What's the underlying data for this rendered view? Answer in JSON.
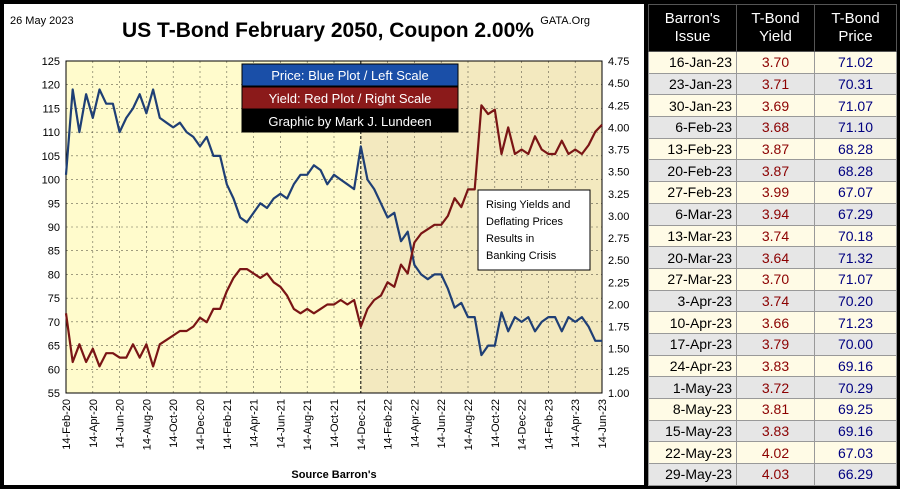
{
  "chart_data": {
    "type": "line",
    "date_label": "26 May 2023",
    "title": "US T-Bond February 2050, Coupon 2.00%",
    "source_tag": "GATA.Org",
    "legend": [
      {
        "text": "Price:  Blue Plot / Left Scale",
        "bg": "#1a4fa8",
        "fg": "#ffffff"
      },
      {
        "text": "Yield:  Red Plot / Right Scale",
        "bg": "#8b1a1a",
        "fg": "#ffffff"
      },
      {
        "text": "Graphic by Mark J. Lundeen",
        "bg": "#000000",
        "fg": "#ffffff"
      }
    ],
    "annotation": [
      "Rising Yields and",
      "Deflating Prices",
      "Results in",
      "Banking Crisis"
    ],
    "xlabel": "Source Barron's",
    "x_ticks": [
      "14-Feb-20",
      "14-Apr-20",
      "14-Jun-20",
      "14-Aug-20",
      "14-Oct-20",
      "14-Dec-20",
      "14-Feb-21",
      "14-Apr-21",
      "14-Jun-21",
      "14-Aug-21",
      "14-Oct-21",
      "14-Dec-21",
      "14-Feb-22",
      "14-Apr-22",
      "14-Jun-22",
      "14-Aug-22",
      "14-Oct-22",
      "14-Dec-22",
      "14-Feb-23",
      "14-Apr-23",
      "14-Jun-23"
    ],
    "ylim_left": [
      55,
      125
    ],
    "y_ticks_left": [
      "55",
      "60",
      "65",
      "70",
      "75",
      "80",
      "85",
      "90",
      "95",
      "100",
      "105",
      "110",
      "115",
      "120",
      "125"
    ],
    "ylim_right": [
      1.0,
      4.75
    ],
    "y_ticks_right": [
      "1.00",
      "1.25",
      "1.50",
      "1.75",
      "2.00",
      "2.25",
      "2.50",
      "2.75",
      "3.00",
      "3.25",
      "3.50",
      "3.75",
      "4.00",
      "4.25",
      "4.50",
      "4.75"
    ],
    "highlight_start_month": 22,
    "colors": {
      "price": "#1f3f75",
      "yield": "#7a1515",
      "plot_bg": "#fffbcc",
      "shade_bg": "#f3e9bf"
    },
    "series": [
      {
        "name": "Price",
        "axis": "left",
        "x": [
          0,
          0.5,
          1,
          1.5,
          2,
          2.5,
          3,
          3.5,
          4,
          4.5,
          5,
          5.5,
          6,
          6.5,
          7,
          7.5,
          8,
          8.5,
          9,
          9.5,
          10,
          10.5,
          11,
          11.5,
          12,
          12.5,
          13,
          13.5,
          14,
          14.5,
          15,
          15.5,
          16,
          16.5,
          17,
          17.5,
          18,
          18.5,
          19,
          19.5,
          20,
          20.5,
          21,
          21.5,
          22,
          22.5,
          23,
          23.5,
          24,
          24.5,
          25,
          25.5,
          26,
          26.5,
          27,
          27.5,
          28,
          28.5,
          29,
          29.5,
          30,
          30.5,
          31,
          31.5,
          32,
          32.5,
          33,
          33.5,
          34,
          34.5,
          35,
          35.5,
          36,
          36.5,
          37,
          37.5,
          38,
          38.5,
          39,
          39.5,
          40
        ],
        "y": [
          101,
          119,
          110,
          118,
          113,
          119,
          116,
          116,
          110,
          113,
          115,
          118,
          114,
          119,
          113,
          112,
          111,
          112,
          110,
          109,
          107,
          109,
          105,
          105,
          99,
          96,
          92,
          91,
          93,
          95,
          94,
          96,
          97,
          96,
          99,
          101,
          101,
          103,
          102,
          99,
          101,
          100,
          99,
          98,
          107,
          100,
          98,
          95,
          92,
          93,
          87,
          89,
          82,
          80,
          79,
          80,
          80,
          77,
          73,
          74,
          71,
          71,
          63,
          65,
          65,
          72,
          68,
          71,
          70,
          71,
          68,
          70,
          71,
          71,
          68,
          71,
          70,
          71,
          69,
          66,
          66
        ]
      },
      {
        "name": "Yield",
        "axis": "right",
        "x": [
          0,
          0.5,
          1,
          1.5,
          2,
          2.5,
          3,
          3.5,
          4,
          4.5,
          5,
          5.5,
          6,
          6.5,
          7,
          7.5,
          8,
          8.5,
          9,
          9.5,
          10,
          10.5,
          11,
          11.5,
          12,
          12.5,
          13,
          13.5,
          14,
          14.5,
          15,
          15.5,
          16,
          16.5,
          17,
          17.5,
          18,
          18.5,
          19,
          19.5,
          20,
          20.5,
          21,
          21.5,
          22,
          22.5,
          23,
          23.5,
          24,
          24.5,
          25,
          25.5,
          26,
          26.5,
          27,
          27.5,
          28,
          28.5,
          29,
          29.5,
          30,
          30.5,
          31,
          31.5,
          32,
          32.5,
          33,
          33.5,
          34,
          34.5,
          35,
          35.5,
          36,
          36.5,
          37,
          37.5,
          38,
          38.5,
          39,
          39.5,
          40
        ],
        "y": [
          1.9,
          1.35,
          1.55,
          1.35,
          1.5,
          1.3,
          1.45,
          1.45,
          1.4,
          1.4,
          1.55,
          1.4,
          1.55,
          1.3,
          1.55,
          1.6,
          1.65,
          1.7,
          1.7,
          1.75,
          1.85,
          1.8,
          1.95,
          1.95,
          2.15,
          2.3,
          2.4,
          2.4,
          2.35,
          2.3,
          2.35,
          2.25,
          2.2,
          2.1,
          1.95,
          1.9,
          1.95,
          1.9,
          1.95,
          2.0,
          2.0,
          2.05,
          2.0,
          2.05,
          1.75,
          1.95,
          2.05,
          2.1,
          2.25,
          2.2,
          2.45,
          2.35,
          2.7,
          2.8,
          2.85,
          2.9,
          2.9,
          3.0,
          3.2,
          3.1,
          3.3,
          3.3,
          4.25,
          4.15,
          4.2,
          3.7,
          4.0,
          3.7,
          3.75,
          3.7,
          3.9,
          3.75,
          3.7,
          3.7,
          3.85,
          3.7,
          3.75,
          3.7,
          3.8,
          3.95,
          4.03
        ]
      }
    ]
  },
  "table": {
    "headers": [
      {
        "line1": "Barron's",
        "line2": "Issue"
      },
      {
        "line1": "T-Bond",
        "line2": "Yield"
      },
      {
        "line1": "T-Bond",
        "line2": "Price"
      }
    ],
    "rows": [
      {
        "date": "16-Jan-23",
        "yield": "3.70",
        "price": "71.02"
      },
      {
        "date": "23-Jan-23",
        "yield": "3.71",
        "price": "70.31"
      },
      {
        "date": "30-Jan-23",
        "yield": "3.69",
        "price": "71.07"
      },
      {
        "date": "6-Feb-23",
        "yield": "3.68",
        "price": "71.10"
      },
      {
        "date": "13-Feb-23",
        "yield": "3.87",
        "price": "68.28"
      },
      {
        "date": "20-Feb-23",
        "yield": "3.87",
        "price": "68.28"
      },
      {
        "date": "27-Feb-23",
        "yield": "3.99",
        "price": "67.07"
      },
      {
        "date": "6-Mar-23",
        "yield": "3.94",
        "price": "67.29"
      },
      {
        "date": "13-Mar-23",
        "yield": "3.74",
        "price": "70.18"
      },
      {
        "date": "20-Mar-23",
        "yield": "3.64",
        "price": "71.32"
      },
      {
        "date": "27-Mar-23",
        "yield": "3.70",
        "price": "71.07"
      },
      {
        "date": "3-Apr-23",
        "yield": "3.74",
        "price": "70.20"
      },
      {
        "date": "10-Apr-23",
        "yield": "3.66",
        "price": "71.23"
      },
      {
        "date": "17-Apr-23",
        "yield": "3.79",
        "price": "70.00"
      },
      {
        "date": "24-Apr-23",
        "yield": "3.83",
        "price": "69.16"
      },
      {
        "date": "1-May-23",
        "yield": "3.72",
        "price": "70.29"
      },
      {
        "date": "8-May-23",
        "yield": "3.81",
        "price": "69.25"
      },
      {
        "date": "15-May-23",
        "yield": "3.83",
        "price": "69.16"
      },
      {
        "date": "22-May-23",
        "yield": "4.02",
        "price": "67.03"
      },
      {
        "date": "29-May-23",
        "yield": "4.03",
        "price": "66.29"
      }
    ]
  }
}
